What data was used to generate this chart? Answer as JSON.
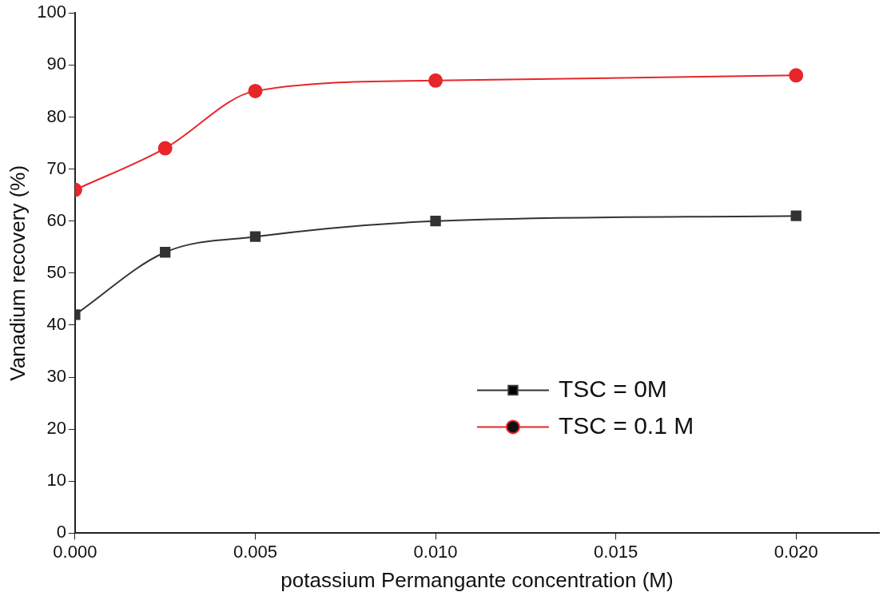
{
  "chart_data": {
    "type": "line",
    "xlabel": "potassium Permangante concentration (M)",
    "ylabel": "Vanadium recovery (%)",
    "x": [
      0,
      0.0025,
      0.005,
      0.01,
      0.02
    ],
    "series": [
      {
        "name": "TSC = 0M",
        "color": "#333333",
        "marker": "square",
        "values": [
          42,
          54,
          57,
          60,
          61
        ]
      },
      {
        "name": "TSC = 0.1 M",
        "color": "#e8262a",
        "marker": "circle",
        "values": [
          66,
          74,
          85,
          87,
          88
        ]
      }
    ],
    "xlim": [
      0,
      0.0223
    ],
    "xticks": [
      {
        "value": 0,
        "label": "0.000"
      },
      {
        "value": 0.005,
        "label": "0.005"
      },
      {
        "value": 0.01,
        "label": "0.010"
      },
      {
        "value": 0.015,
        "label": "0.015"
      },
      {
        "value": 0.02,
        "label": "0.020"
      }
    ],
    "ylim": [
      0,
      100
    ],
    "yticks": [
      0,
      10,
      20,
      30,
      40,
      50,
      60,
      70,
      80,
      90,
      100
    ],
    "grid": false,
    "legend": "bottom right",
    "line_style": "solid"
  }
}
